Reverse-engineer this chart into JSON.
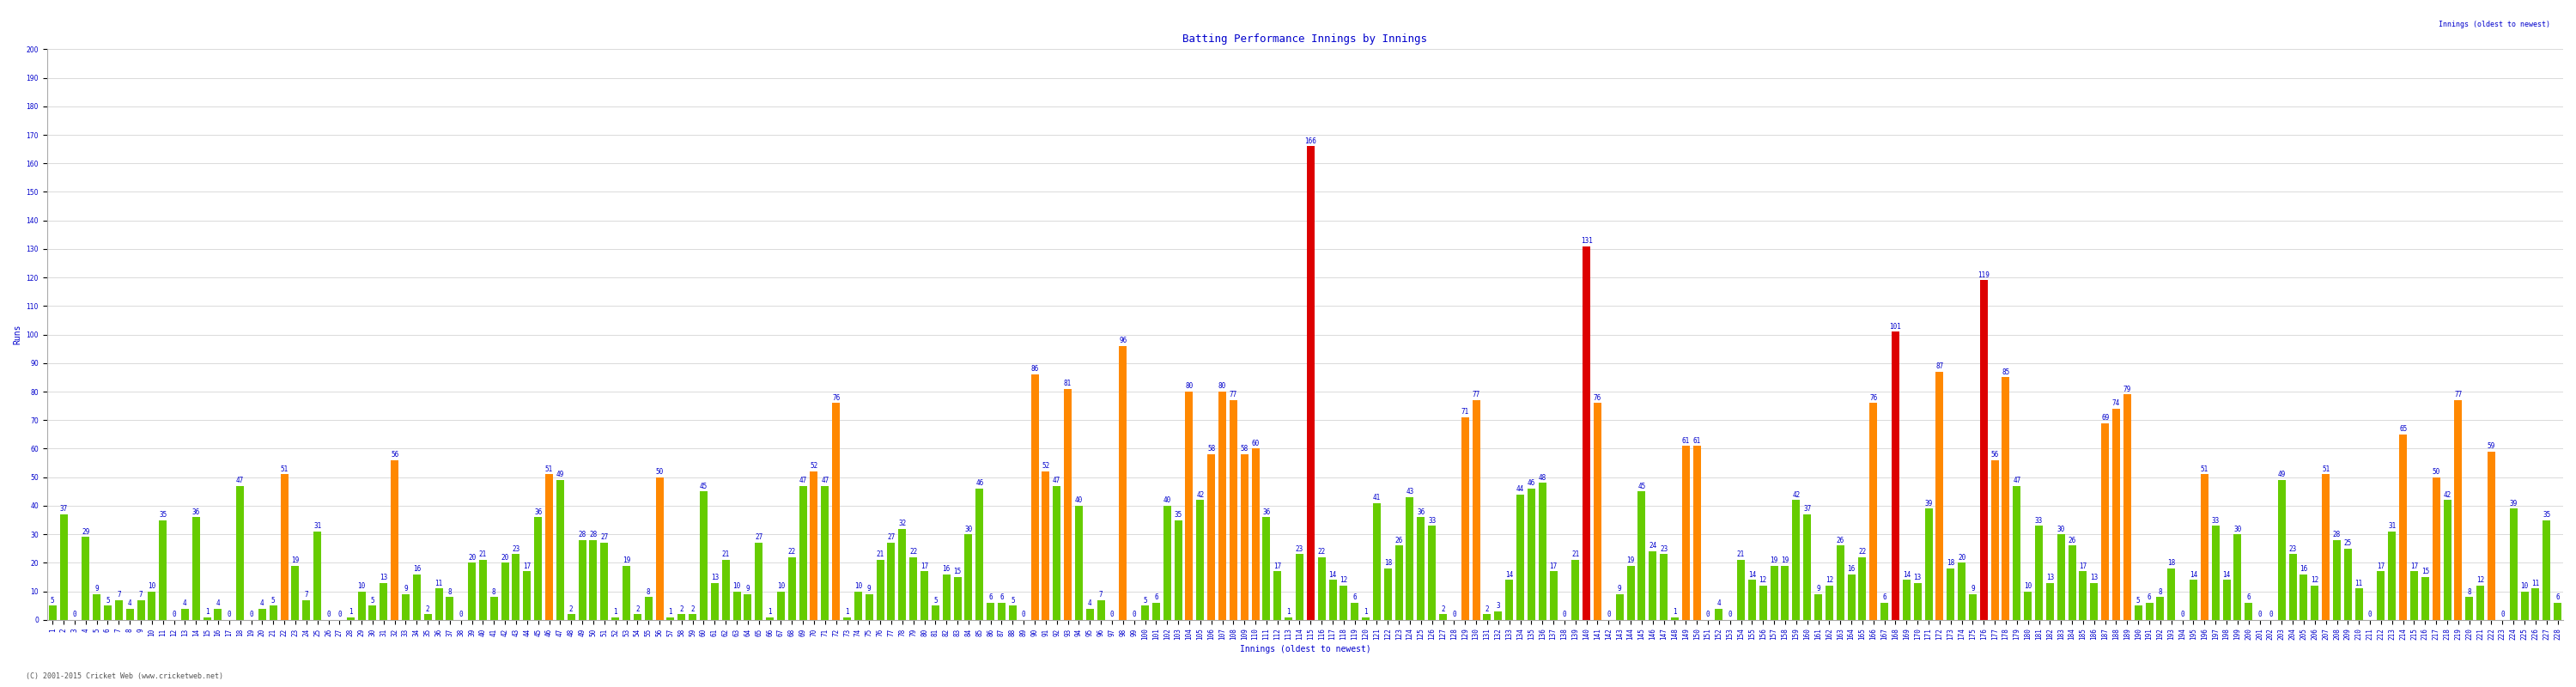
{
  "title": "Batting Performance Innings by Innings",
  "xlabel": "Innings (oldest to newest)",
  "ylabel": "Runs",
  "ylim": [
    0,
    200
  ],
  "yticks": [
    0,
    10,
    20,
    30,
    40,
    50,
    60,
    70,
    80,
    90,
    100,
    110,
    120,
    130,
    140,
    150,
    160,
    170,
    180,
    190,
    200
  ],
  "footer": "(C) 2001-2015 Cricket Web (www.cricketweb.net)",
  "values": [
    5,
    37,
    0,
    29,
    9,
    5,
    7,
    4,
    7,
    10,
    35,
    0,
    4,
    36,
    1,
    4,
    0,
    47,
    0,
    4,
    5,
    51,
    19,
    7,
    31,
    0,
    0,
    1,
    10,
    5,
    13,
    56,
    9,
    16,
    2,
    11,
    8,
    0,
    20,
    21,
    8,
    20,
    23,
    17,
    36,
    51,
    49,
    2,
    28,
    28,
    27,
    1,
    19,
    2,
    8,
    50,
    1,
    2,
    2,
    45,
    13,
    21,
    10,
    9,
    27,
    1,
    10,
    22,
    47,
    52,
    47,
    76,
    1,
    10,
    9,
    21,
    27,
    32,
    22,
    17,
    5,
    16,
    15,
    30,
    46,
    6,
    6,
    5,
    0,
    86,
    52,
    47,
    81,
    40,
    4,
    7,
    0,
    96,
    0,
    5,
    6,
    40,
    35,
    80,
    42,
    58,
    80,
    77,
    58,
    60,
    36,
    17,
    1,
    23,
    166,
    22,
    14,
    12,
    6,
    1,
    41,
    18,
    26,
    43,
    36,
    33,
    2,
    0,
    71,
    77,
    2,
    3,
    14,
    44,
    46,
    48,
    17,
    0,
    21,
    131,
    76,
    0,
    9,
    19,
    45,
    24,
    23,
    1,
    61,
    61,
    0,
    4,
    0,
    21,
    14,
    12,
    19,
    19,
    42,
    37,
    9,
    12,
    26,
    16,
    22,
    76,
    6,
    101,
    14,
    13,
    39,
    87,
    18,
    20,
    9,
    119,
    56,
    85,
    47,
    10,
    33,
    13,
    30,
    26,
    17,
    13,
    69,
    74,
    79,
    5,
    6,
    8,
    18,
    0,
    14,
    51,
    33,
    14,
    30,
    6,
    0,
    0,
    49,
    23,
    16,
    12,
    51,
    28,
    25,
    11,
    0,
    17,
    31,
    65,
    17,
    15,
    50,
    42,
    77,
    8,
    12,
    59,
    0,
    39,
    10,
    11,
    35,
    6
  ],
  "bar_color_green": "#66cc00",
  "bar_color_orange": "#ff8800",
  "bar_color_red": "#dd0000",
  "bg_color": "#ffffff",
  "grid_color": "#cccccc",
  "text_color": "#0000cc",
  "label_fontsize": 5.5,
  "tick_fontsize": 5.5,
  "title_fontsize": 9,
  "axis_label_fontsize": 7
}
